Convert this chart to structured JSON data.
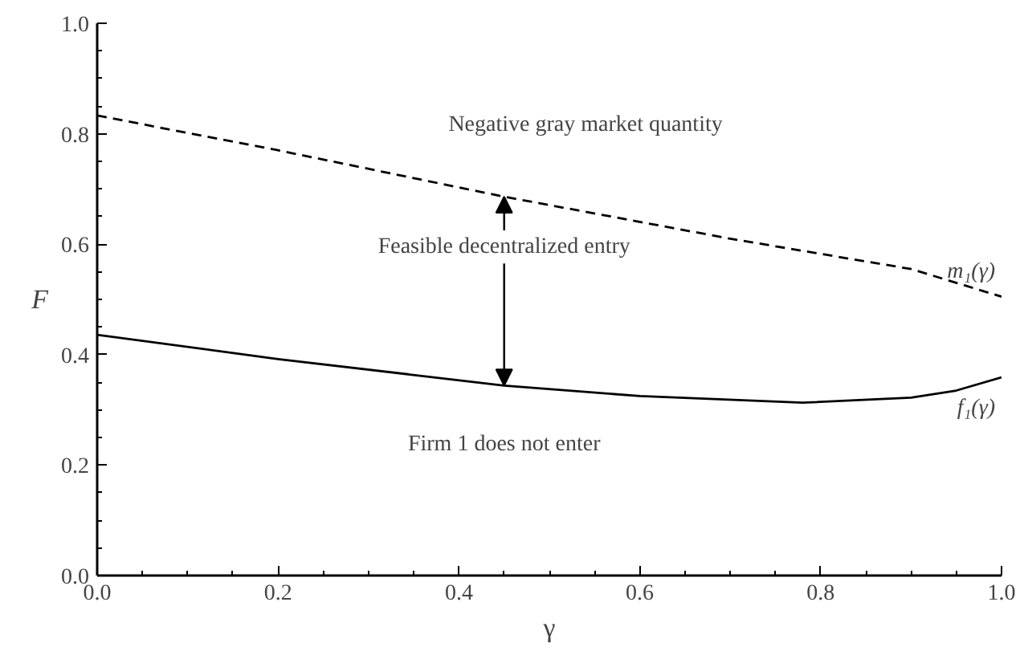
{
  "chart_data": {
    "type": "line",
    "xlabel": "γ",
    "ylabel": "F",
    "xlim": [
      0,
      1
    ],
    "ylim": [
      0,
      1
    ],
    "xticks": [
      {
        "value": 0.0,
        "label": "0.0"
      },
      {
        "value": 0.2,
        "label": "0.2"
      },
      {
        "value": 0.4,
        "label": "0.4"
      },
      {
        "value": 0.6,
        "label": "0.6"
      },
      {
        "value": 0.8,
        "label": "0.8"
      },
      {
        "value": 1.0,
        "label": "1.0"
      }
    ],
    "yticks": [
      {
        "value": 0.0,
        "label": "0.0"
      },
      {
        "value": 0.2,
        "label": "0.2"
      },
      {
        "value": 0.4,
        "label": "0.4"
      },
      {
        "value": 0.6,
        "label": "0.6"
      },
      {
        "value": 0.8,
        "label": "0.8"
      },
      {
        "value": 1.0,
        "label": "1.0"
      }
    ],
    "grid": false,
    "series": [
      {
        "name": "m₁(γ)",
        "color": "#000000",
        "line_style": "dashed",
        "x": [
          0,
          0.2,
          0.45,
          0.7,
          0.9,
          1.0
        ],
        "values": [
          0.833,
          0.77,
          0.686,
          0.61,
          0.555,
          0.505
        ]
      },
      {
        "name": "f₁(γ)",
        "color": "#000000",
        "line_style": "solid",
        "x": [
          0,
          0.2,
          0.45,
          0.6,
          0.78,
          0.9,
          0.95,
          1.0
        ],
        "values": [
          0.436,
          0.392,
          0.344,
          0.325,
          0.313,
          0.322,
          0.335,
          0.359
        ]
      }
    ],
    "annotations": [
      "Negative gray market quantity",
      {
        "text": "Feasible decentralized entry",
        "x": 0.45,
        "y": 0.344
      },
      "Firm 1 does not enter"
    ]
  }
}
